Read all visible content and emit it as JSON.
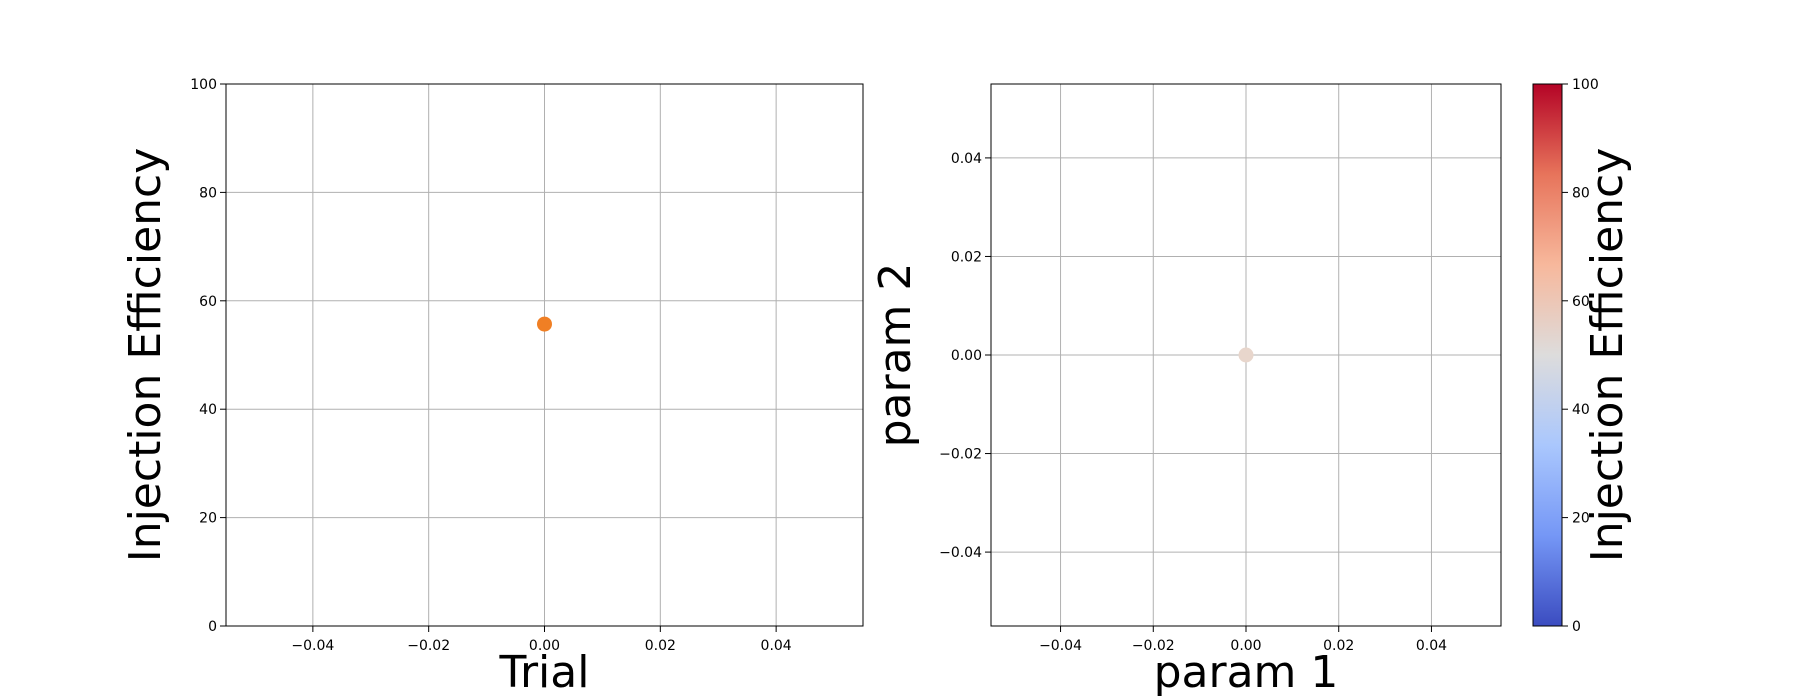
{
  "chart_data": [
    {
      "type": "scatter",
      "title": "",
      "xlabel": "Trial",
      "ylabel": "Injection Efficiency",
      "xlim": [
        -0.055,
        0.055
      ],
      "ylim": [
        0,
        100
      ],
      "xticks": [
        -0.04,
        -0.02,
        0.0,
        0.02,
        0.04
      ],
      "xtick_labels": [
        "−0.04",
        "−0.02",
        "0.00",
        "0.02",
        "0.04"
      ],
      "yticks": [
        0,
        20,
        40,
        60,
        80,
        100
      ],
      "ytick_labels": [
        "0",
        "20",
        "40",
        "60",
        "80",
        "100"
      ],
      "grid": true,
      "points": [
        {
          "x": 0.0,
          "y": 55.7
        }
      ],
      "point_color": "#f07f24"
    },
    {
      "type": "scatter",
      "title": "",
      "xlabel": "param 1",
      "ylabel": "param 2",
      "xlim": [
        -0.055,
        0.055
      ],
      "ylim": [
        -0.055,
        0.055
      ],
      "xticks": [
        -0.04,
        -0.02,
        0.0,
        0.02,
        0.04
      ],
      "xtick_labels": [
        "−0.04",
        "−0.02",
        "0.00",
        "0.02",
        "0.04"
      ],
      "yticks": [
        -0.04,
        -0.02,
        0.0,
        0.02,
        0.04
      ],
      "ytick_labels": [
        "−0.04",
        "−0.02",
        "0.00",
        "0.02",
        "0.04"
      ],
      "grid": true,
      "points": [
        {
          "x": 0.0,
          "y": 0.0,
          "value": 55.7
        }
      ],
      "point_color": "#e8d6cc",
      "colorbar": {
        "label": "Injection Efficiency",
        "colormap": "coolwarm",
        "range": [
          0,
          100
        ],
        "ticks": [
          0,
          20,
          40,
          60,
          80,
          100
        ],
        "tick_labels": [
          "0",
          "20",
          "40",
          "60",
          "80",
          "100"
        ],
        "colors_bottom_to_top": [
          "#3b4cc0",
          "#7597f6",
          "#aac7fd",
          "#dddcdc",
          "#f7b89c",
          "#e7745b",
          "#b40426"
        ]
      }
    }
  ]
}
